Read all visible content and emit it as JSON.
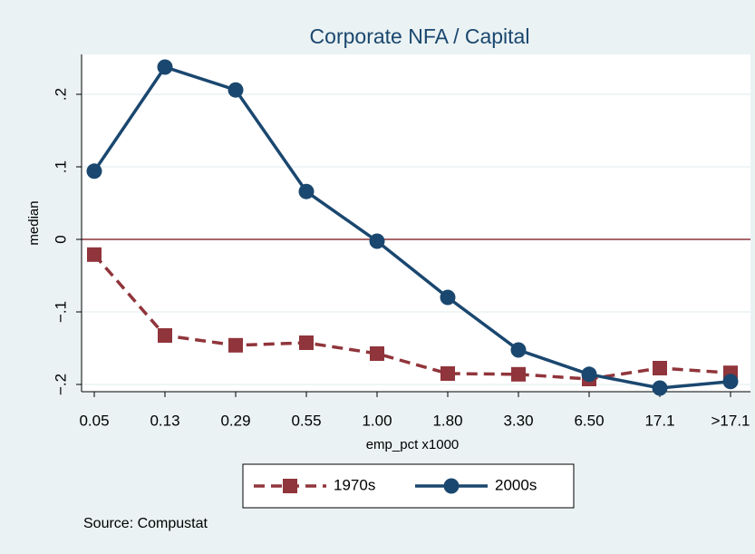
{
  "chart_data": {
    "type": "line",
    "title": "Corporate NFA / Capital",
    "xlabel": "emp_pct x1000",
    "ylabel": "median",
    "note": "Source: Compustat",
    "categories": [
      "0.05",
      "0.13",
      "0.29",
      "0.55",
      "1.00",
      "1.80",
      "3.30",
      "6.50",
      "17.1",
      ">17.1"
    ],
    "series": [
      {
        "name": "1970s",
        "color": "#90353b",
        "marker": "square",
        "dash": true,
        "values": [
          -0.021,
          -0.1325,
          -0.146,
          -0.1425,
          -0.1575,
          -0.185,
          -0.186,
          -0.1925,
          -0.1775,
          -0.184
        ]
      },
      {
        "name": "2000s",
        "color": "#1a476f",
        "marker": "circle",
        "dash": false,
        "values": [
          0.094,
          0.2375,
          0.206,
          0.066,
          -0.0025,
          -0.08,
          -0.1525,
          -0.186,
          -0.205,
          -0.196
        ]
      }
    ],
    "ylim": [
      -0.21,
      0.255
    ],
    "yticks": [
      {
        "value": -0.2,
        "label": "−.2"
      },
      {
        "value": -0.1,
        "label": "−.1"
      },
      0,
      {
        "value": 0.1,
        "label": ".1"
      },
      {
        "value": 0.2,
        "label": ".2"
      }
    ],
    "yline": 0,
    "yline_color": "#90353b",
    "grid": true,
    "legend": "bottom"
  }
}
